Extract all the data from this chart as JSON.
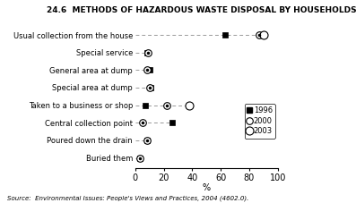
{
  "title": "24.6  METHODS OF HAZARDOUS WASTE DISPOSAL BY HOUSEHOLDS",
  "categories": [
    "Usual collection from the house",
    "Special service",
    "General area at dump",
    "Special area at dump",
    "Taken to a business or shop",
    "Central collection point",
    "Poured down the drain",
    "Buried them"
  ],
  "data_1996": [
    63,
    8,
    10,
    11,
    7,
    26,
    8,
    3
  ],
  "data_2000": [
    87,
    9,
    8,
    10,
    22,
    5,
    8,
    3
  ],
  "data_2003": [
    90,
    null,
    null,
    null,
    38,
    null,
    null,
    null
  ],
  "dash_start": [
    0,
    0,
    0,
    0,
    0,
    0,
    0,
    0
  ],
  "xlabel": "%",
  "xlim": [
    0,
    100
  ],
  "xticks": [
    0,
    20,
    40,
    60,
    80,
    100
  ],
  "source": "Source:  Environmental Issues: People's Views and Practices, 2004 (4602.0).",
  "background_color": "#ffffff",
  "legend_1996": "1996",
  "legend_2000": "2000",
  "legend_2003": "2003"
}
